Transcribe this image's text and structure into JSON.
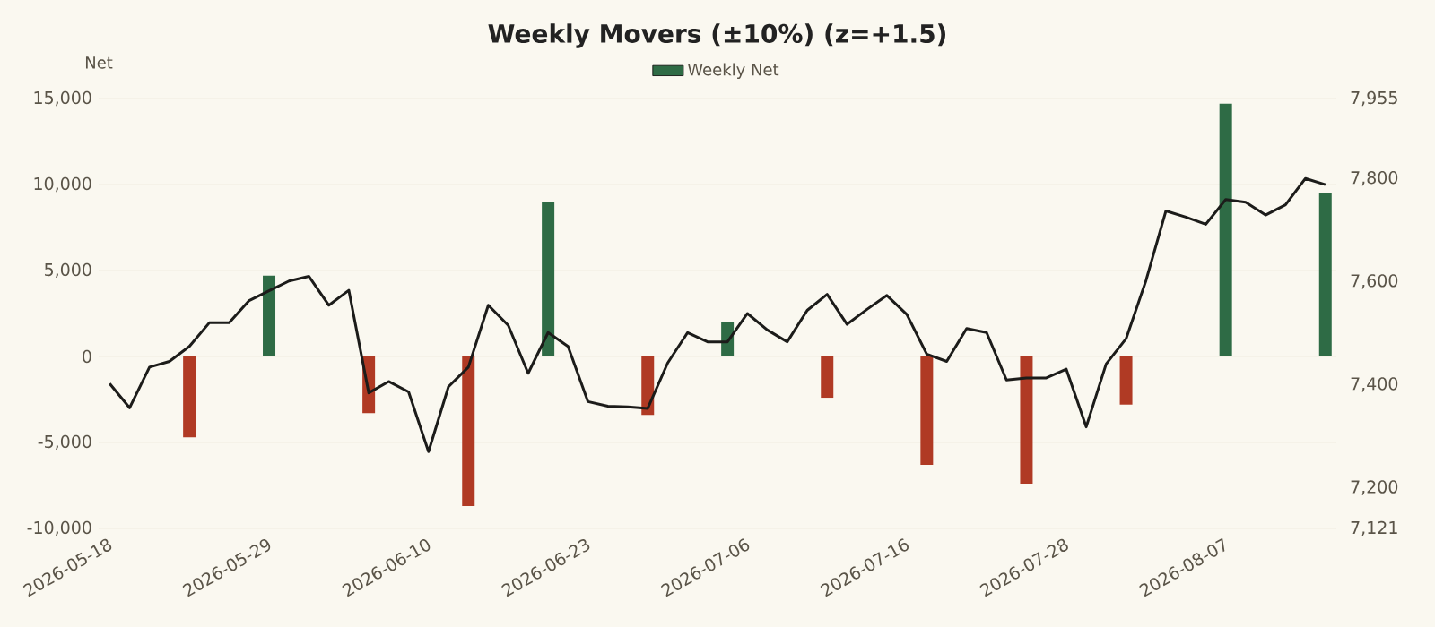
{
  "chart_data": {
    "type": "bar",
    "title": "Weekly Movers (±10%) (z=+1.5)",
    "ylabel": "Net",
    "categories": [
      "2026-05-18",
      null,
      null,
      null,
      null,
      null,
      null,
      null,
      "2026-05-29",
      null,
      null,
      null,
      null,
      null,
      null,
      null,
      "2026-06-10",
      null,
      null,
      null,
      null,
      null,
      null,
      null,
      "2026-06-23",
      null,
      null,
      null,
      null,
      null,
      null,
      null,
      "2026-07-06",
      null,
      null,
      null,
      null,
      null,
      null,
      null,
      "2026-07-16",
      null,
      null,
      null,
      null,
      null,
      null,
      null,
      "2026-07-28",
      null,
      null,
      null,
      null,
      null,
      null,
      null,
      "2026-08-07",
      null,
      null,
      null,
      null,
      null
    ],
    "series": [
      {
        "name": "Weekly Net",
        "color": "#2e6b45",
        "values": [
          null,
          null,
          null,
          null,
          -4700,
          null,
          null,
          null,
          4700,
          null,
          null,
          null,
          null,
          -3300,
          null,
          null,
          null,
          null,
          -8700,
          null,
          null,
          null,
          9000,
          null,
          null,
          null,
          null,
          -3400,
          null,
          null,
          null,
          2000,
          null,
          null,
          null,
          null,
          -2400,
          null,
          null,
          null,
          null,
          -6300,
          null,
          null,
          null,
          null,
          -7400,
          null,
          null,
          null,
          null,
          -2800,
          null,
          null,
          null,
          null,
          14700,
          null,
          null,
          null,
          null,
          9500
        ],
        "colors": [
          null,
          null,
          null,
          null,
          "#b03a24",
          null,
          null,
          null,
          "#2e6b45",
          null,
          null,
          null,
          null,
          "#b03a24",
          null,
          null,
          null,
          null,
          "#b03a24",
          null,
          null,
          null,
          "#2e6b45",
          null,
          null,
          null,
          null,
          "#b03a24",
          null,
          null,
          null,
          "#2e6b45",
          null,
          null,
          null,
          null,
          "#b03a24",
          null,
          null,
          null,
          null,
          "#b03a24",
          null,
          null,
          null,
          null,
          "#b03a24",
          null,
          null,
          null,
          null,
          "#b03a24",
          null,
          null,
          null,
          null,
          "#2e6b45",
          null,
          null,
          null,
          null,
          "#2e6b45"
        ]
      },
      {
        "type": "line",
        "axis": "y2",
        "color": "#1c1c1a",
        "values": [
          7402,
          7355,
          7434,
          7445,
          7474,
          7520,
          7520,
          7563,
          7582,
          7601,
          7610,
          7554,
          7583,
          7384,
          7406,
          7386,
          7270,
          7396,
          7434,
          7554,
          7515,
          7422,
          7501,
          7474,
          7367,
          7358,
          7357,
          7354,
          7442,
          7501,
          7483,
          7483,
          7538,
          7506,
          7483,
          7544,
          7575,
          7517,
          7546,
          7573,
          7536,
          7459,
          7445,
          7509,
          7501,
          7409,
          7413,
          7413,
          7430,
          7318,
          7440,
          7489,
          7602,
          7737,
          7725,
          7711,
          7759,
          7754,
          7729,
          7749,
          7800,
          7788
        ]
      }
    ],
    "ylim": [
      -10000,
      15000
    ],
    "yticks": [
      {
        "value": -10000,
        "label": "-10,000"
      },
      {
        "value": -5000,
        "label": "-5,000"
      },
      0,
      {
        "value": 5000,
        "label": "5,000"
      },
      {
        "value": 10000,
        "label": "10,000"
      },
      {
        "value": 15000,
        "label": "15,000"
      }
    ],
    "y2lim": [
      7121,
      7955
    ],
    "y2ticks": [
      {
        "value": 7121,
        "label": "7,121"
      },
      {
        "value": 7200,
        "label": "7,200"
      },
      {
        "value": 7400,
        "label": "7,400"
      },
      {
        "value": 7600,
        "label": "7,600"
      },
      {
        "value": 7800,
        "label": "7,800"
      },
      {
        "value": 7955,
        "label": "7,955"
      }
    ],
    "grid": "y",
    "legend": "top"
  }
}
